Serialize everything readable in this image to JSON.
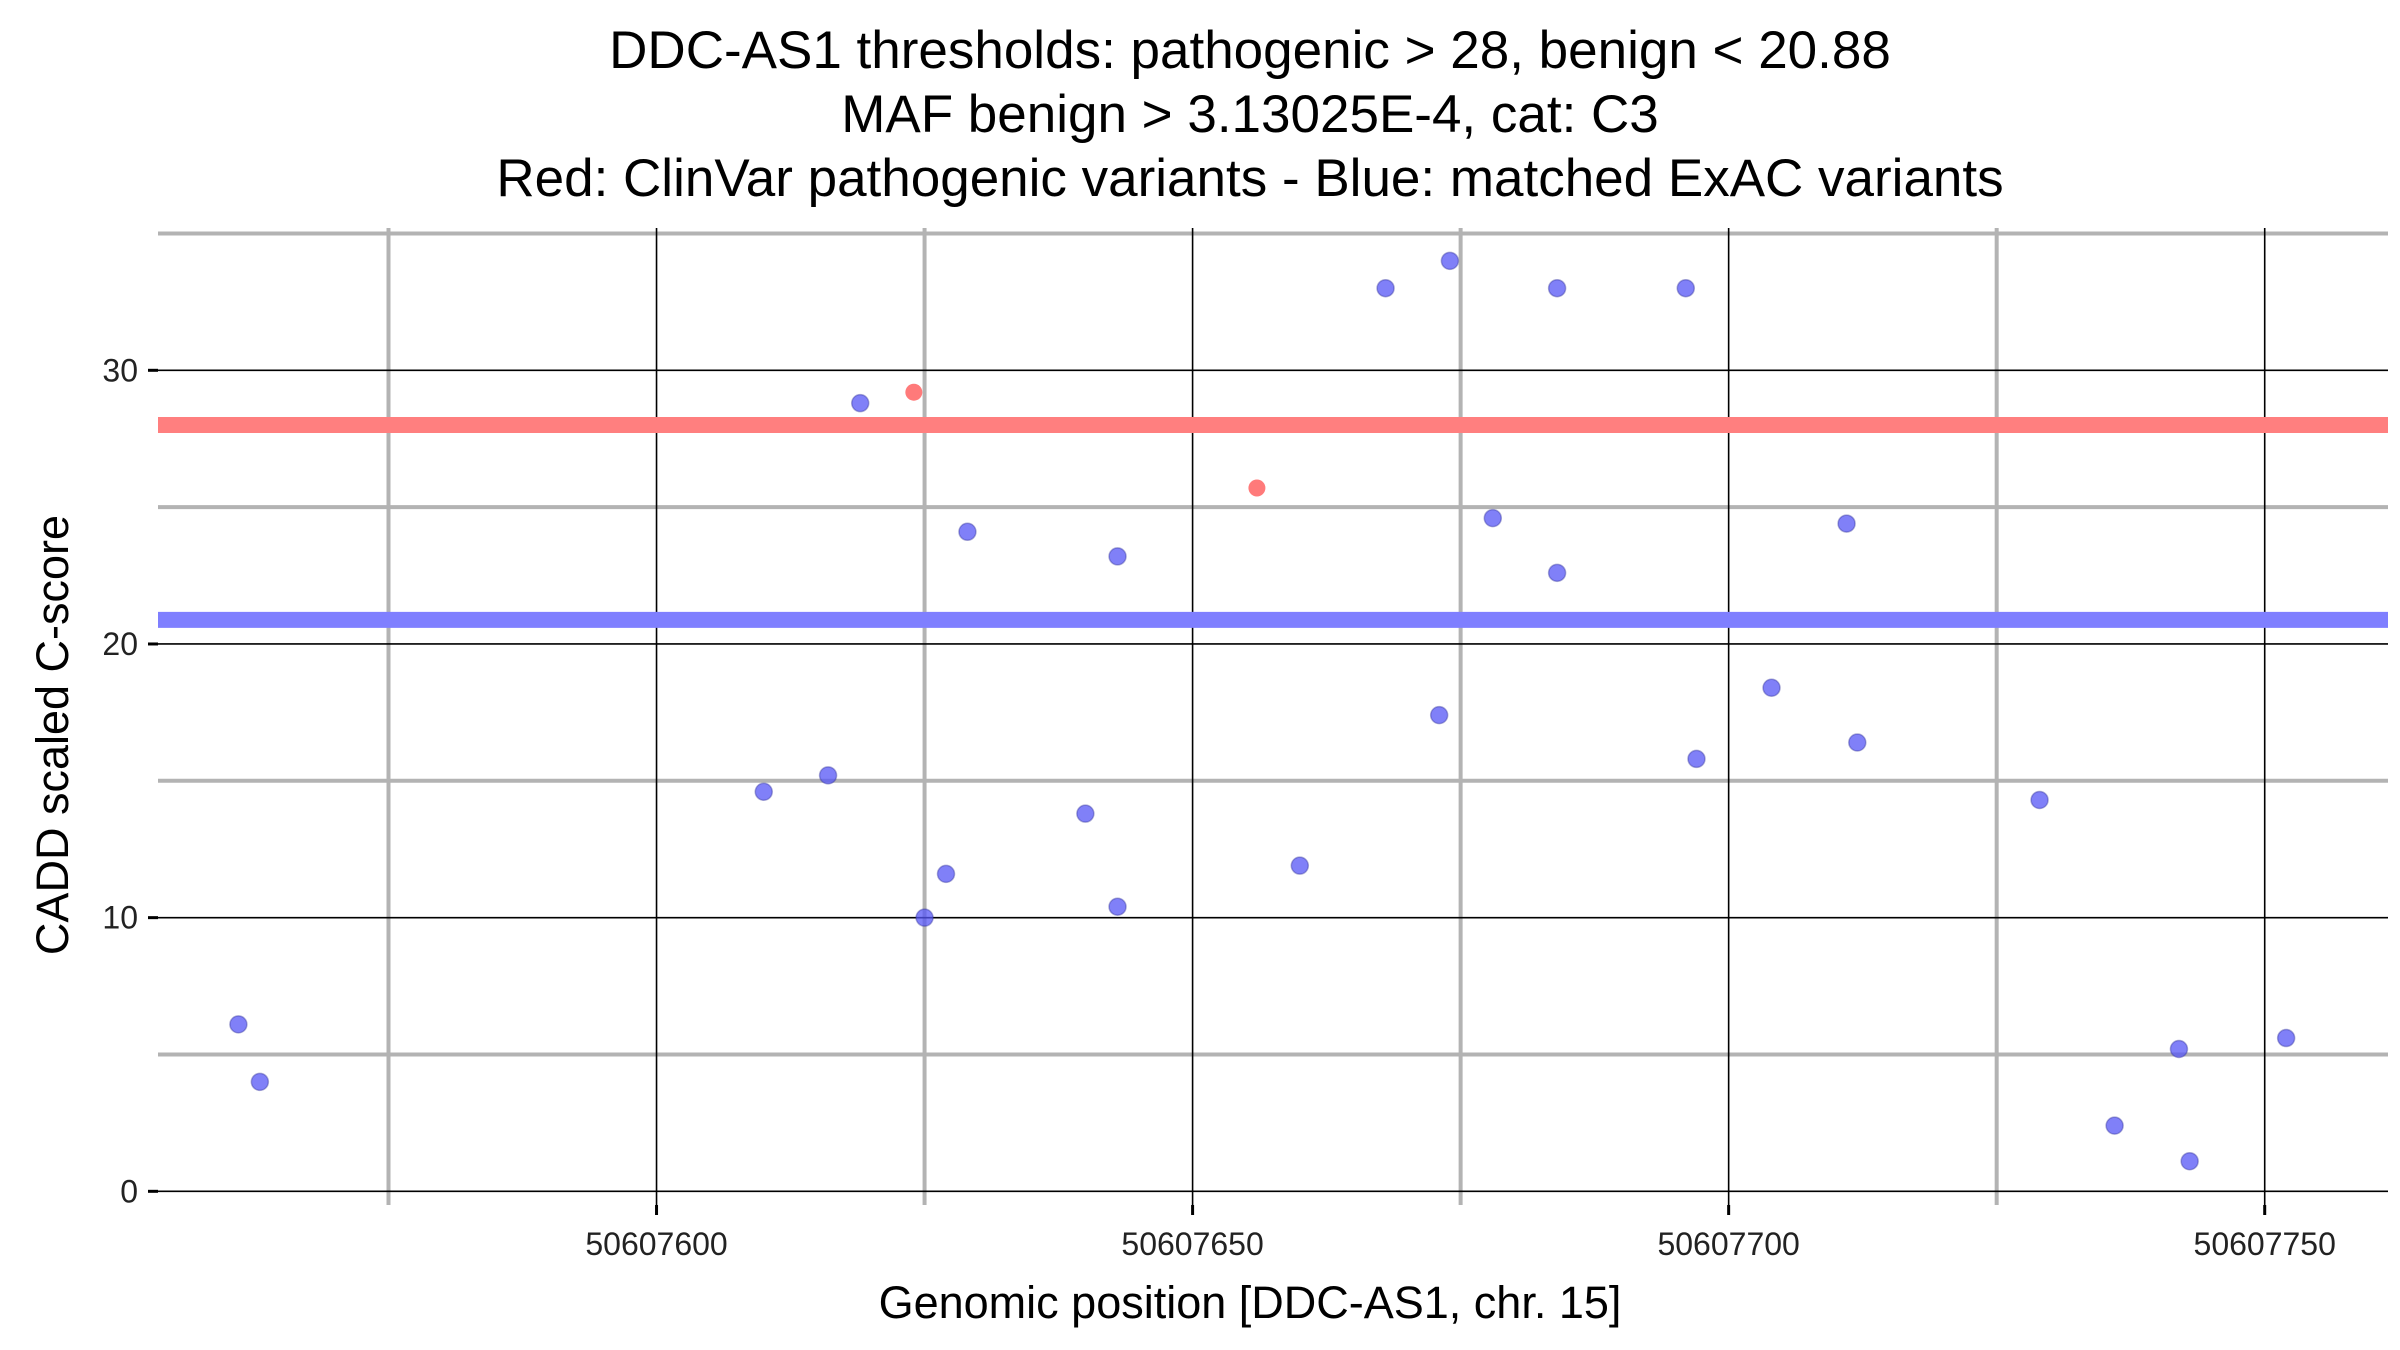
{
  "chart_data": {
    "type": "scatter",
    "title_lines": [
      "DDC-AS1 thresholds: pathogenic > 28, benign < 20.88",
      "MAF benign > 3.13025E-4, cat: C3",
      "Red: ClinVar pathogenic variants - Blue: matched ExAC variants"
    ],
    "xlabel": "Genomic position [DDC-AS1, chr. 15]",
    "ylabel": "CADD scaled C-score",
    "xlim": [
      50607553.5,
      50607761.5
    ],
    "ylim": [
      -0.5,
      35.2
    ],
    "x_major_ticks": [
      50607600,
      50607650,
      50607700,
      50607750
    ],
    "x_tick_labels": [
      "50607600",
      "50607650",
      "50607700",
      "50607750"
    ],
    "x_minor_gridlines": [
      50607575,
      50607625,
      50607675,
      50607725
    ],
    "y_major_ticks": [
      0,
      10,
      20,
      30
    ],
    "y_tick_labels": [
      "0",
      "10",
      "20",
      "30"
    ],
    "y_minor_gridlines": [
      5,
      15,
      25,
      35
    ],
    "thresholds": [
      {
        "name": "pathogenic",
        "value": 28,
        "color": "#ff7f7f"
      },
      {
        "name": "benign",
        "value": 20.88,
        "color": "#7f7fff"
      }
    ],
    "series": [
      {
        "name": "ClinVar pathogenic variants",
        "color": "#ff4d4d",
        "points": [
          {
            "x": 50607624,
            "y": 29.2
          },
          {
            "x": 50607656,
            "y": 25.7
          }
        ]
      },
      {
        "name": "matched ExAC variants",
        "color": "#5555f5",
        "points": [
          {
            "x": 50607561,
            "y": 6.1
          },
          {
            "x": 50607563,
            "y": 4.0
          },
          {
            "x": 50607610,
            "y": 14.6
          },
          {
            "x": 50607616,
            "y": 15.2
          },
          {
            "x": 50607619,
            "y": 28.8
          },
          {
            "x": 50607625,
            "y": 10.0
          },
          {
            "x": 50607627,
            "y": 11.6
          },
          {
            "x": 50607629,
            "y": 24.1
          },
          {
            "x": 50607640,
            "y": 13.8
          },
          {
            "x": 50607643,
            "y": 23.2
          },
          {
            "x": 50607643,
            "y": 10.4
          },
          {
            "x": 50607660,
            "y": 11.9
          },
          {
            "x": 50607668,
            "y": 33.0
          },
          {
            "x": 50607673,
            "y": 17.4
          },
          {
            "x": 50607674,
            "y": 34.0
          },
          {
            "x": 50607678,
            "y": 24.6
          },
          {
            "x": 50607684,
            "y": 33.0
          },
          {
            "x": 50607684,
            "y": 22.6
          },
          {
            "x": 50607696,
            "y": 33.0
          },
          {
            "x": 50607697,
            "y": 15.8
          },
          {
            "x": 50607704,
            "y": 18.4
          },
          {
            "x": 50607711,
            "y": 24.4
          },
          {
            "x": 50607712,
            "y": 16.4
          },
          {
            "x": 50607729,
            "y": 14.3
          },
          {
            "x": 50607736,
            "y": 2.4
          },
          {
            "x": 50607742,
            "y": 5.2
          },
          {
            "x": 50607743,
            "y": 1.1
          },
          {
            "x": 50607752,
            "y": 5.6
          }
        ]
      }
    ]
  }
}
